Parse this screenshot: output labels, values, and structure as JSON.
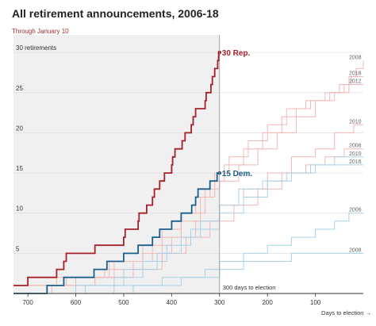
{
  "title": "All retirement announcements, 2006-18",
  "subtitle": "Through January 10",
  "colors": {
    "republican": "#a5212b",
    "democrat": "#1b5f8c",
    "faint_republican": "#f2b7b5",
    "faint_democrat": "#a9d0e8",
    "shade": "#f0f0f0",
    "text": "#333333"
  },
  "chart_data": {
    "type": "line",
    "x_axis": {
      "label": "Days to election →",
      "reversed": true,
      "range": [
        730,
        0
      ],
      "ticks": [
        700,
        600,
        500,
        400,
        300,
        200,
        100
      ]
    },
    "y_axis": {
      "range": [
        0,
        31
      ],
      "ticks": [
        5,
        10,
        15,
        20,
        25,
        30
      ],
      "top_tick_label": "30 retirements"
    },
    "shaded_region": [
      730,
      300
    ],
    "marker_label": "300 days to election",
    "highlight_series": [
      {
        "name": "2018 Rep.",
        "end_label": "30 Rep.",
        "party": "R",
        "x": [
          730,
          700,
          640,
          625,
          620,
          560,
          500,
          497,
          470,
          468,
          452,
          440,
          436,
          425,
          415,
          400,
          398,
          393,
          378,
          372,
          359,
          355,
          350,
          330,
          328,
          318,
          315,
          310,
          304,
          302,
          300
        ],
        "y": [
          1,
          2,
          3,
          4,
          5,
          6,
          7,
          8,
          9,
          10,
          11,
          12,
          13,
          14,
          15,
          16,
          17,
          18,
          19,
          20,
          21,
          22,
          23,
          24,
          25,
          26,
          27,
          28,
          29,
          30,
          30
        ]
      },
      {
        "name": "2018 Dem.",
        "end_label": "15 Dem.",
        "party": "D",
        "x": [
          730,
          660,
          625,
          562,
          535,
          500,
          470,
          440,
          425,
          400,
          380,
          358,
          350,
          345,
          320,
          305,
          300
        ],
        "y": [
          0,
          1,
          2,
          3,
          4,
          5,
          6,
          7,
          8,
          9,
          10,
          11,
          12,
          13,
          14,
          15,
          15
        ]
      }
    ],
    "background_series": [
      {
        "name": "2008",
        "party": "R",
        "x": [
          730,
          560,
          530,
          460,
          420,
          380,
          350,
          320,
          290,
          250,
          210,
          170,
          140,
          110,
          70,
          40,
          25,
          15,
          0
        ],
        "y": [
          1,
          2,
          4,
          6,
          8,
          10,
          12,
          14,
          16,
          18,
          20,
          22,
          23,
          24,
          25,
          26,
          27,
          28,
          29
        ]
      },
      {
        "name": "2018",
        "party": "R",
        "x": [
          730,
          600,
          480,
          420,
          380,
          340,
          310,
          280,
          240,
          200,
          160,
          120,
          80,
          50,
          30,
          0
        ],
        "y": [
          1,
          2,
          4,
          6,
          9,
          12,
          15,
          17,
          19,
          21,
          23,
          24,
          25,
          26,
          27,
          27
        ]
      },
      {
        "name": "2012",
        "party": "R",
        "x": [
          730,
          620,
          520,
          440,
          380,
          330,
          300,
          260,
          220,
          180,
          140,
          100,
          60,
          30,
          0
        ],
        "y": [
          1,
          2,
          4,
          7,
          10,
          13,
          14,
          16,
          18,
          20,
          22,
          24,
          25,
          26,
          26
        ]
      },
      {
        "name": "2010",
        "party": "R",
        "x": [
          730,
          640,
          540,
          460,
          400,
          350,
          300,
          250,
          200,
          150,
          100,
          60,
          20,
          0
        ],
        "y": [
          1,
          2,
          3,
          5,
          7,
          9,
          11,
          13,
          15,
          17,
          18,
          20,
          21,
          21
        ]
      },
      {
        "name": "2006",
        "party": "R",
        "x": [
          730,
          650,
          560,
          480,
          420,
          370,
          320,
          270,
          220,
          170,
          120,
          80,
          40,
          0
        ],
        "y": [
          0,
          1,
          2,
          3,
          5,
          7,
          9,
          11,
          13,
          15,
          16,
          17,
          18,
          18
        ]
      },
      {
        "name": "2010",
        "party": "D",
        "x": [
          730,
          600,
          520,
          460,
          410,
          360,
          300,
          250,
          200,
          150,
          100,
          60,
          20,
          0
        ],
        "y": [
          0,
          1,
          2,
          4,
          6,
          8,
          10,
          12,
          14,
          15,
          16,
          17,
          17,
          17
        ]
      },
      {
        "name": "2016",
        "party": "D",
        "x": [
          730,
          580,
          500,
          430,
          380,
          340,
          300,
          260,
          210,
          160,
          110,
          70,
          30,
          0
        ],
        "y": [
          0,
          1,
          3,
          5,
          7,
          9,
          11,
          13,
          14,
          15,
          16,
          16,
          16,
          16
        ]
      },
      {
        "name": "2006",
        "party": "D",
        "x": [
          730,
          520,
          420,
          330,
          300,
          250,
          200,
          150,
          100,
          60,
          30,
          0
        ],
        "y": [
          0,
          1,
          2,
          3,
          4,
          5,
          6,
          7,
          8,
          9,
          10,
          10
        ]
      },
      {
        "name": "2008",
        "party": "D",
        "x": [
          730,
          480,
          380,
          300,
          250,
          200,
          150,
          120,
          90,
          60,
          30,
          0
        ],
        "y": [
          0,
          1,
          2,
          3,
          4,
          4,
          5,
          5,
          5,
          5,
          5,
          5
        ]
      }
    ]
  }
}
